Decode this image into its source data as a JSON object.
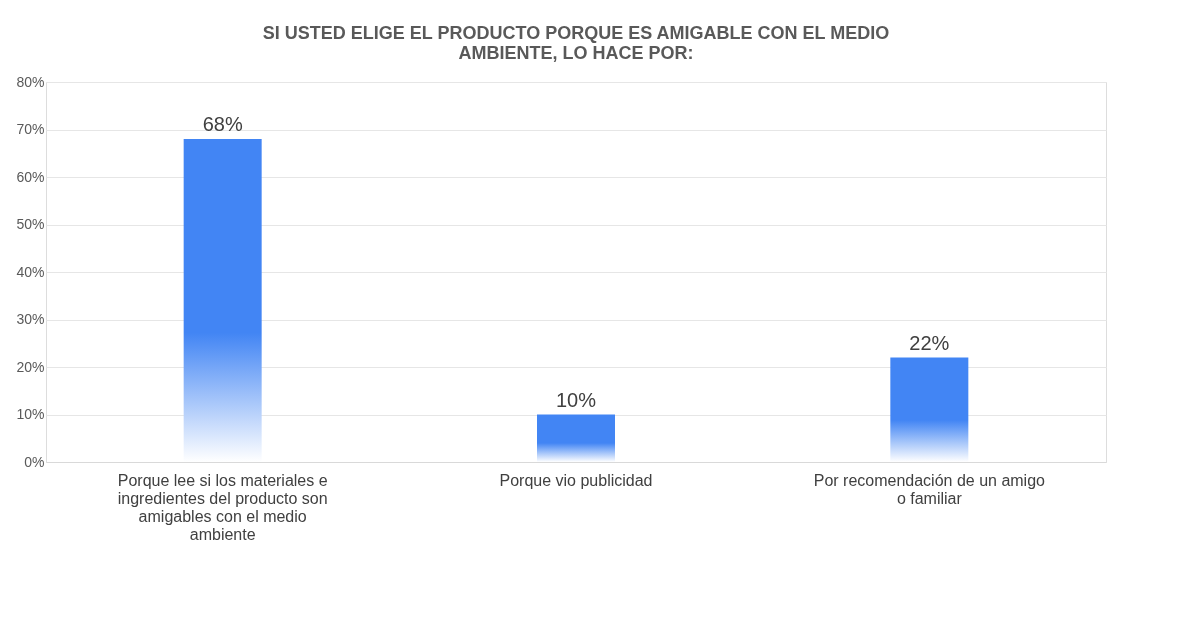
{
  "chart_data": {
    "type": "bar",
    "title": "SI USTED ELIGE EL PRODUCTO PORQUE ES AMIGABLE CON EL MEDIO AMBIENTE, LO HACE POR:",
    "categories": [
      "Porque lee si los materiales e ingredientes del producto son amigables con el medio ambiente",
      "Porque vio publicidad",
      "Por recomendación de un amigo o familiar"
    ],
    "values": [
      68,
      10,
      22
    ],
    "value_labels": [
      "68%",
      "10%",
      "22%"
    ],
    "color": "#4285f4",
    "ylim": [
      0,
      80
    ],
    "yticks": [
      {
        "value": 0,
        "label": "0%"
      },
      {
        "value": 10,
        "label": "10%"
      },
      {
        "value": 20,
        "label": "20%"
      },
      {
        "value": 30,
        "label": "30%"
      },
      {
        "value": 40,
        "label": "40%"
      },
      {
        "value": 50,
        "label": "50%"
      },
      {
        "value": 60,
        "label": "60%"
      },
      {
        "value": 70,
        "label": "70%"
      },
      {
        "value": 80,
        "label": "80%"
      }
    ],
    "grid": "y"
  }
}
